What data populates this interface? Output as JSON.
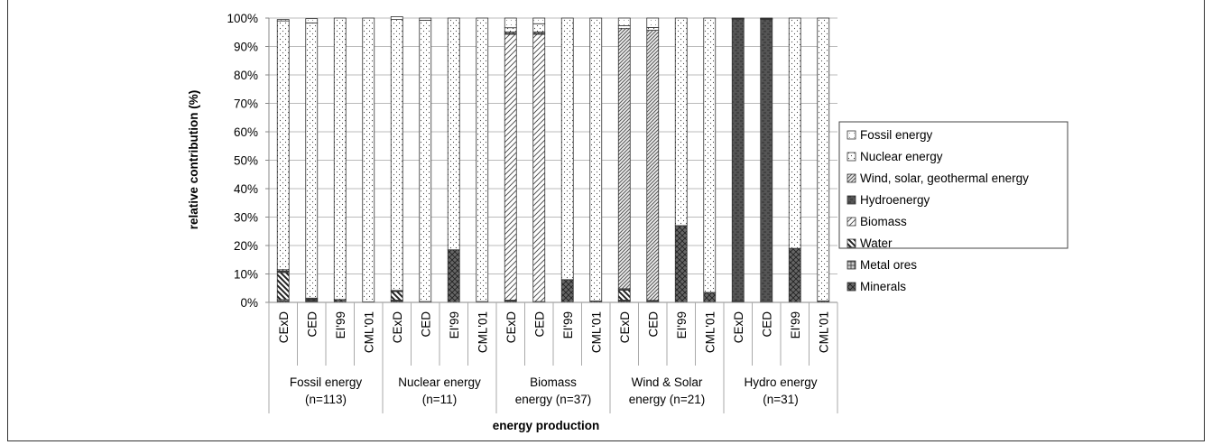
{
  "chart_data": {
    "type": "bar",
    "stacked": true,
    "percent": true,
    "title": "",
    "xlabel": "energy production",
    "ylabel": "relative contribution (%)",
    "ylim": [
      0,
      100
    ],
    "y_ticks": [
      "0%",
      "10%",
      "20%",
      "30%",
      "40%",
      "50%",
      "60%",
      "70%",
      "80%",
      "90%",
      "100%"
    ],
    "grid": true,
    "legend_position": "right",
    "groups": [
      {
        "label_line1": "Fossil energy",
        "label_line2": "(n=113)"
      },
      {
        "label_line1": "Nuclear energy",
        "label_line2": "(n=11)"
      },
      {
        "label_line1": "Biomass",
        "label_line2": "energy (n=37)"
      },
      {
        "label_line1": "Wind & Solar",
        "label_line2": "energy (n=21)"
      },
      {
        "label_line1": "Hydro energy",
        "label_line2": "(n=31)"
      }
    ],
    "categories": [
      "CExD",
      "CED",
      "EI'99",
      "CML'01",
      "CExD",
      "CED",
      "EI'99",
      "CML'01",
      "CExD",
      "CED",
      "EI'99",
      "CML'01",
      "CExD",
      "CED",
      "EI'99",
      "CML'01",
      "CExD",
      "CED",
      "EI'99",
      "CML'01"
    ],
    "series": [
      {
        "name": "Minerals",
        "values": [
          0.5,
          0.3,
          1,
          0.2,
          0.5,
          0.2,
          18.5,
          0.3,
          0.5,
          0.2,
          8,
          0.5,
          0.5,
          0.3,
          27,
          3.5,
          0.3,
          0.2,
          19,
          0.5
        ],
        "pattern": "cross",
        "color": "#555555"
      },
      {
        "name": "Metal ores",
        "values": [
          0.5,
          0.3,
          0,
          0,
          0.3,
          0.1,
          0,
          0,
          0.3,
          0.1,
          0,
          0,
          0.3,
          0.1,
          0,
          0,
          0.2,
          0.1,
          0,
          0
        ],
        "pattern": "grid",
        "color": "#888888"
      },
      {
        "name": "Water",
        "values": [
          9.5,
          0.3,
          0,
          0,
          3,
          0,
          0,
          0,
          0,
          0,
          0,
          0,
          3.5,
          0,
          0,
          0,
          0,
          0,
          0,
          0
        ],
        "pattern": "bslash",
        "color": "#666666"
      },
      {
        "name": "Biomass",
        "values": [
          0,
          0,
          0,
          0,
          0,
          0,
          0,
          0,
          93.5,
          94,
          0,
          0,
          0,
          0,
          0,
          0,
          0,
          0,
          0,
          0
        ],
        "pattern": "fslash",
        "color": "#888888"
      },
      {
        "name": "Hydroenergy",
        "values": [
          0.5,
          0.3,
          0,
          0,
          0.2,
          0,
          0,
          0,
          0.3,
          0.3,
          0,
          0,
          0.5,
          0.3,
          0,
          0,
          99,
          99.2,
          0,
          0
        ],
        "pattern": "hydro",
        "color": "#555555"
      },
      {
        "name": "Wind, solar, geothermal energy",
        "values": [
          0.5,
          0.3,
          0,
          0,
          0.2,
          0,
          0,
          0,
          0.5,
          0.5,
          0,
          0,
          91.5,
          95,
          0,
          0,
          0.3,
          0.2,
          0,
          0
        ],
        "pattern": "wind",
        "color": "#888888"
      },
      {
        "name": "Nuclear energy",
        "values": [
          87.5,
          96.8,
          99,
          99.8,
          95.3,
          98.9,
          81.5,
          99.7,
          1.5,
          2.9,
          92,
          99.5,
          1,
          1,
          73,
          96.5,
          0.1,
          0.2,
          81,
          99.5
        ],
        "pattern": "dots",
        "color": "#bbbbbb"
      },
      {
        "name": "Fossil energy",
        "values": [
          0.5,
          1.5,
          0,
          0,
          1,
          0.8,
          0,
          0,
          3.4,
          2,
          0,
          0,
          2.7,
          3.3,
          0,
          0,
          0.1,
          0.1,
          0,
          0
        ],
        "pattern": "fossil",
        "color": "#cccccc"
      }
    ],
    "legend_order": [
      "Fossil energy",
      "Nuclear energy",
      "Wind, solar, geothermal energy",
      "Hydroenergy",
      "Biomass",
      "Water",
      "Metal ores",
      "Minerals"
    ]
  }
}
